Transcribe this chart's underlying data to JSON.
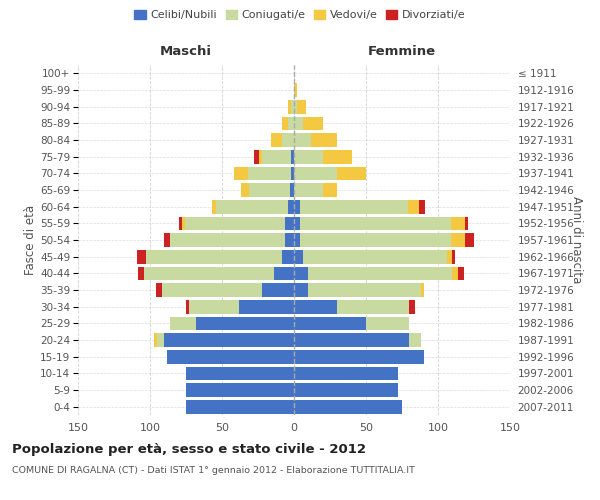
{
  "age_groups": [
    "0-4",
    "5-9",
    "10-14",
    "15-19",
    "20-24",
    "25-29",
    "30-34",
    "35-39",
    "40-44",
    "45-49",
    "50-54",
    "55-59",
    "60-64",
    "65-69",
    "70-74",
    "75-79",
    "80-84",
    "85-89",
    "90-94",
    "95-99",
    "100+"
  ],
  "birth_years": [
    "2007-2011",
    "2002-2006",
    "1997-2001",
    "1992-1996",
    "1987-1991",
    "1982-1986",
    "1977-1981",
    "1972-1976",
    "1967-1971",
    "1962-1966",
    "1957-1961",
    "1952-1956",
    "1947-1951",
    "1942-1946",
    "1937-1941",
    "1932-1936",
    "1927-1931",
    "1922-1926",
    "1917-1921",
    "1912-1916",
    "≤ 1911"
  ],
  "maschi": {
    "celibi": [
      75,
      75,
      75,
      88,
      90,
      68,
      38,
      22,
      14,
      8,
      6,
      6,
      4,
      3,
      2,
      2,
      0,
      0,
      0,
      0,
      0
    ],
    "coniugati": [
      0,
      0,
      0,
      0,
      5,
      18,
      35,
      70,
      90,
      95,
      80,
      70,
      50,
      28,
      30,
      20,
      8,
      4,
      2,
      0,
      0
    ],
    "vedovi": [
      0,
      0,
      0,
      0,
      2,
      0,
      0,
      0,
      0,
      0,
      0,
      2,
      3,
      6,
      10,
      2,
      8,
      4,
      2,
      0,
      0
    ],
    "divorziati": [
      0,
      0,
      0,
      0,
      0,
      0,
      2,
      4,
      4,
      6,
      4,
      2,
      0,
      0,
      0,
      4,
      0,
      0,
      0,
      0,
      0
    ]
  },
  "femmine": {
    "nubili": [
      75,
      72,
      72,
      90,
      80,
      50,
      30,
      10,
      10,
      6,
      4,
      4,
      4,
      0,
      0,
      0,
      0,
      0,
      0,
      0,
      0
    ],
    "coniugate": [
      0,
      0,
      0,
      0,
      8,
      30,
      50,
      78,
      100,
      100,
      105,
      105,
      75,
      20,
      30,
      20,
      12,
      6,
      2,
      0,
      0
    ],
    "vedove": [
      0,
      0,
      0,
      0,
      0,
      0,
      0,
      2,
      4,
      4,
      10,
      10,
      8,
      10,
      20,
      20,
      18,
      14,
      6,
      2,
      0
    ],
    "divorziate": [
      0,
      0,
      0,
      0,
      0,
      0,
      4,
      0,
      4,
      2,
      6,
      2,
      4,
      0,
      0,
      0,
      0,
      0,
      0,
      0,
      0
    ]
  },
  "colors": {
    "celibi_nubili": "#4472c4",
    "coniugati": "#c8daa0",
    "vedovi": "#f5c842",
    "divorziati": "#cc2222"
  },
  "xlim": 150,
  "title": "Popolazione per età, sesso e stato civile - 2012",
  "subtitle": "COMUNE DI RAGALNA (CT) - Dati ISTAT 1° gennaio 2012 - Elaborazione TUTTITALIA.IT",
  "xlabel_left": "Maschi",
  "xlabel_right": "Femmine",
  "ylabel_left": "Fasce di età",
  "ylabel_right": "Anni di nascita",
  "legend_labels": [
    "Celibi/Nubili",
    "Coniugati/e",
    "Vedovi/e",
    "Divorziati/e"
  ],
  "bg_color": "#ffffff",
  "grid_color": "#cccccc",
  "xticks": [
    150,
    100,
    50,
    0,
    50,
    100,
    150
  ]
}
